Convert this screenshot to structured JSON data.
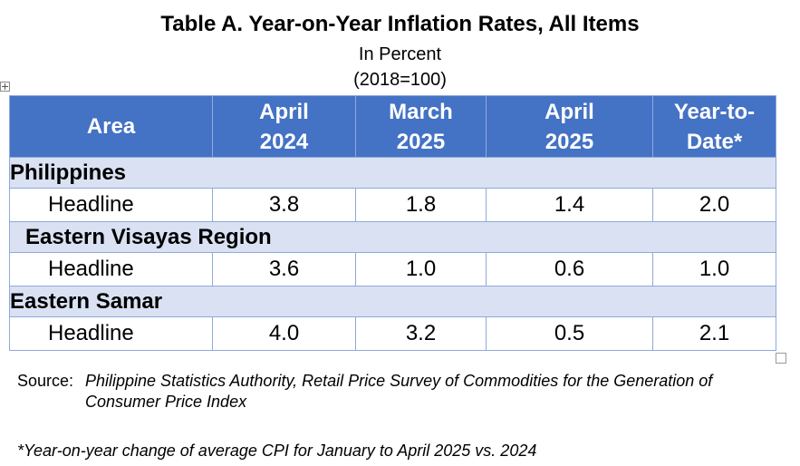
{
  "title": "Table A. Year-on-Year Inflation Rates, All Items",
  "subtitle_1": "In Percent",
  "subtitle_2": "(2018=100)",
  "table": {
    "headers": {
      "area": "Area",
      "col1_line1": "April",
      "col1_line2": "2024",
      "col2_line1": "March",
      "col2_line2": "2025",
      "col3_line1": "April",
      "col3_line2": "2025",
      "col4_line1": "Year-to-",
      "col4_line2": "Date*"
    },
    "groups": [
      {
        "region": "Philippines",
        "row": {
          "label": "Headline",
          "apr2024": "3.8",
          "mar2025": "1.8",
          "apr2025": "1.4",
          "ytd": "2.0"
        }
      },
      {
        "region": "Eastern Visayas Region",
        "row": {
          "label": "Headline",
          "apr2024": "3.6",
          "mar2025": "1.0",
          "apr2025": "0.6",
          "ytd": "1.0"
        }
      },
      {
        "region": "Eastern Samar",
        "row": {
          "label": "Headline",
          "apr2024": "4.0",
          "mar2025": "3.2",
          "apr2025": "0.5",
          "ytd": "2.1"
        }
      }
    ]
  },
  "source_label": "Source:",
  "source_text": "Philippine Statistics Authority, Retail Price Survey of Commodities for the Generation of Consumer Price Index",
  "footnote": "*Year-on-year change of average CPI for January to April 2025 vs. 2024",
  "colors": {
    "header_bg": "#4472c4",
    "region_bg": "#d9e1f2",
    "border": "#8eaadb"
  },
  "icons": {
    "table_move_handle": "move-cross-icon",
    "table_resize_handle": "resize-square-icon"
  }
}
